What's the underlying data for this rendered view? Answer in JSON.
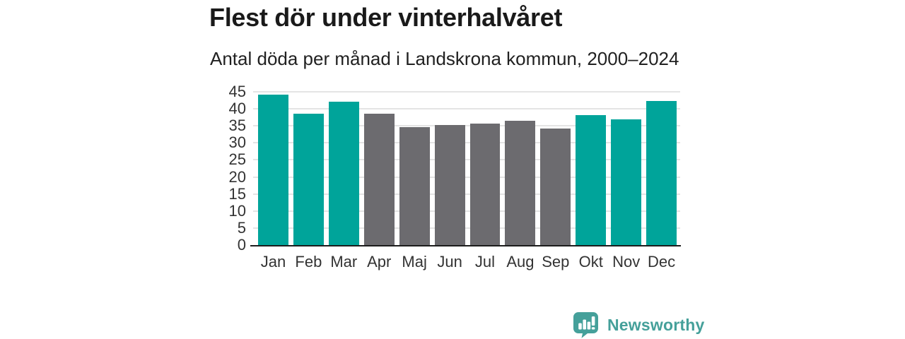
{
  "title": "Flest dör under vinterhalvåret",
  "subtitle": "Antal döda per månad i Landskrona kommun, 2000–2024",
  "colors": {
    "highlight": "#00a49a",
    "muted": "#6c6b6f",
    "grid": "#e4e4e4",
    "axis_line": "#1c1c1c",
    "title_text": "#1a1a1a",
    "tick_text": "#333333",
    "logo": "#45a09a"
  },
  "chart_data": {
    "type": "bar",
    "categories": [
      "Jan",
      "Feb",
      "Mar",
      "Apr",
      "Maj",
      "Jun",
      "Jul",
      "Aug",
      "Sep",
      "Okt",
      "Nov",
      "Dec"
    ],
    "values": [
      44.2,
      38.6,
      42.1,
      38.5,
      34.6,
      35.3,
      35.6,
      36.4,
      34.3,
      38.2,
      37.0,
      42.3
    ],
    "highlighted": [
      true,
      true,
      true,
      false,
      false,
      false,
      false,
      false,
      false,
      true,
      true,
      true
    ],
    "title": "Flest dör under vinterhalvåret",
    "subtitle": "Antal döda per månad i Landskrona kommun, 2000–2024",
    "xlabel": "",
    "ylabel": "",
    "ylim": [
      0,
      45
    ],
    "yticks": [
      0,
      5,
      10,
      15,
      20,
      25,
      30,
      35,
      40,
      45
    ],
    "grid": true,
    "legend": false
  },
  "branding": {
    "logo_text": "Newsworthy",
    "logo_icon": "bar-chart-speech-bubble-icon"
  }
}
